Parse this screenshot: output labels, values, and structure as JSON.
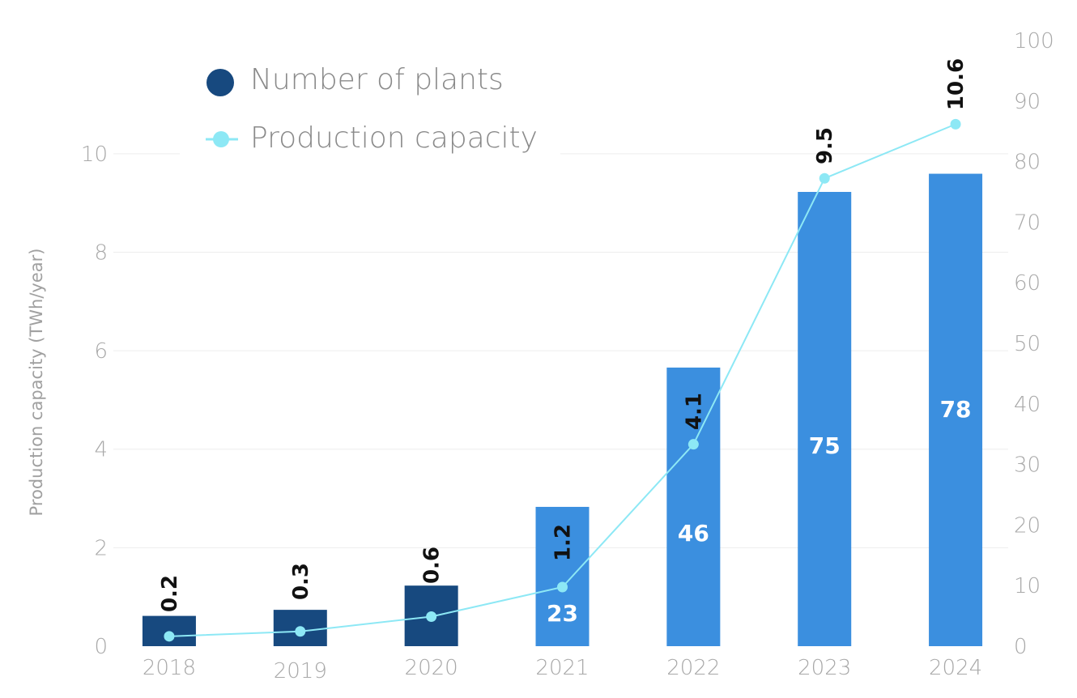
{
  "chart_data": {
    "type": "bar",
    "categories": [
      "2018",
      "2019",
      "2020",
      "2021",
      "2022",
      "2023",
      "2024"
    ],
    "series": [
      {
        "name": "Number of plants",
        "type": "bar",
        "axis": "right",
        "values": [
          5,
          6,
          10,
          23,
          46,
          75,
          78
        ],
        "value_labels": [
          "",
          "",
          "",
          "23",
          "46",
          "75",
          "78"
        ],
        "colors": [
          "#17497f",
          "#17497f",
          "#17497f",
          "#3b8fdf",
          "#3b8fdf",
          "#3b8fdf",
          "#3b8fdf"
        ]
      },
      {
        "name": "Production capacity",
        "type": "line",
        "axis": "left",
        "values": [
          0.2,
          0.3,
          0.6,
          1.2,
          4.1,
          9.5,
          10.6
        ],
        "value_labels": [
          "0.2",
          "0.3",
          "0.6",
          "1.2",
          "4.1",
          "9.5",
          "10.6"
        ],
        "color": "#8de8f5"
      }
    ],
    "y_left": {
      "label": "Production capacity (TWh/year)",
      "ticks": [
        "0",
        "2",
        "4",
        "6",
        "8",
        "10"
      ],
      "range": [
        0,
        12.3
      ]
    },
    "y_right": {
      "label": "",
      "ticks": [
        "0",
        "10",
        "20",
        "30",
        "40",
        "50",
        "60",
        "70",
        "80",
        "90",
        "100"
      ],
      "range": [
        0,
        100
      ]
    },
    "grid": true,
    "legend_position": "top-left"
  }
}
